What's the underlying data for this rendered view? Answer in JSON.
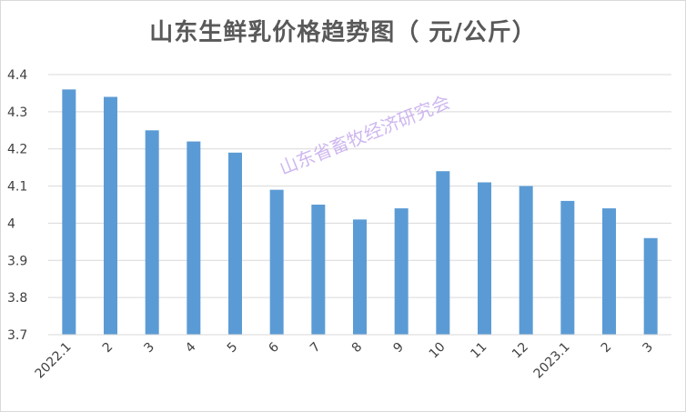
{
  "chart_data": {
    "type": "bar",
    "title": "山东生鲜乳价格趋势图（ 元/公斤）",
    "categories": [
      "2022.1",
      "2",
      "3",
      "4",
      "5",
      "6",
      "7",
      "8",
      "9",
      "10",
      "11",
      "12",
      "2023.1",
      "2",
      "3"
    ],
    "values": [
      4.36,
      4.34,
      4.25,
      4.22,
      4.19,
      4.09,
      4.05,
      4.01,
      4.04,
      4.14,
      4.11,
      4.1,
      4.06,
      4.04,
      3.96
    ],
    "yticks": [
      "3.7",
      "3.8",
      "3.9",
      "4",
      "4.1",
      "4.2",
      "4.3",
      "4.4"
    ],
    "ylim": [
      3.7,
      4.4
    ],
    "xlabel": "",
    "ylabel": "",
    "grid": true,
    "bar_color": "#5b9bd5",
    "watermark": "山东省畜牧经济研究会"
  }
}
